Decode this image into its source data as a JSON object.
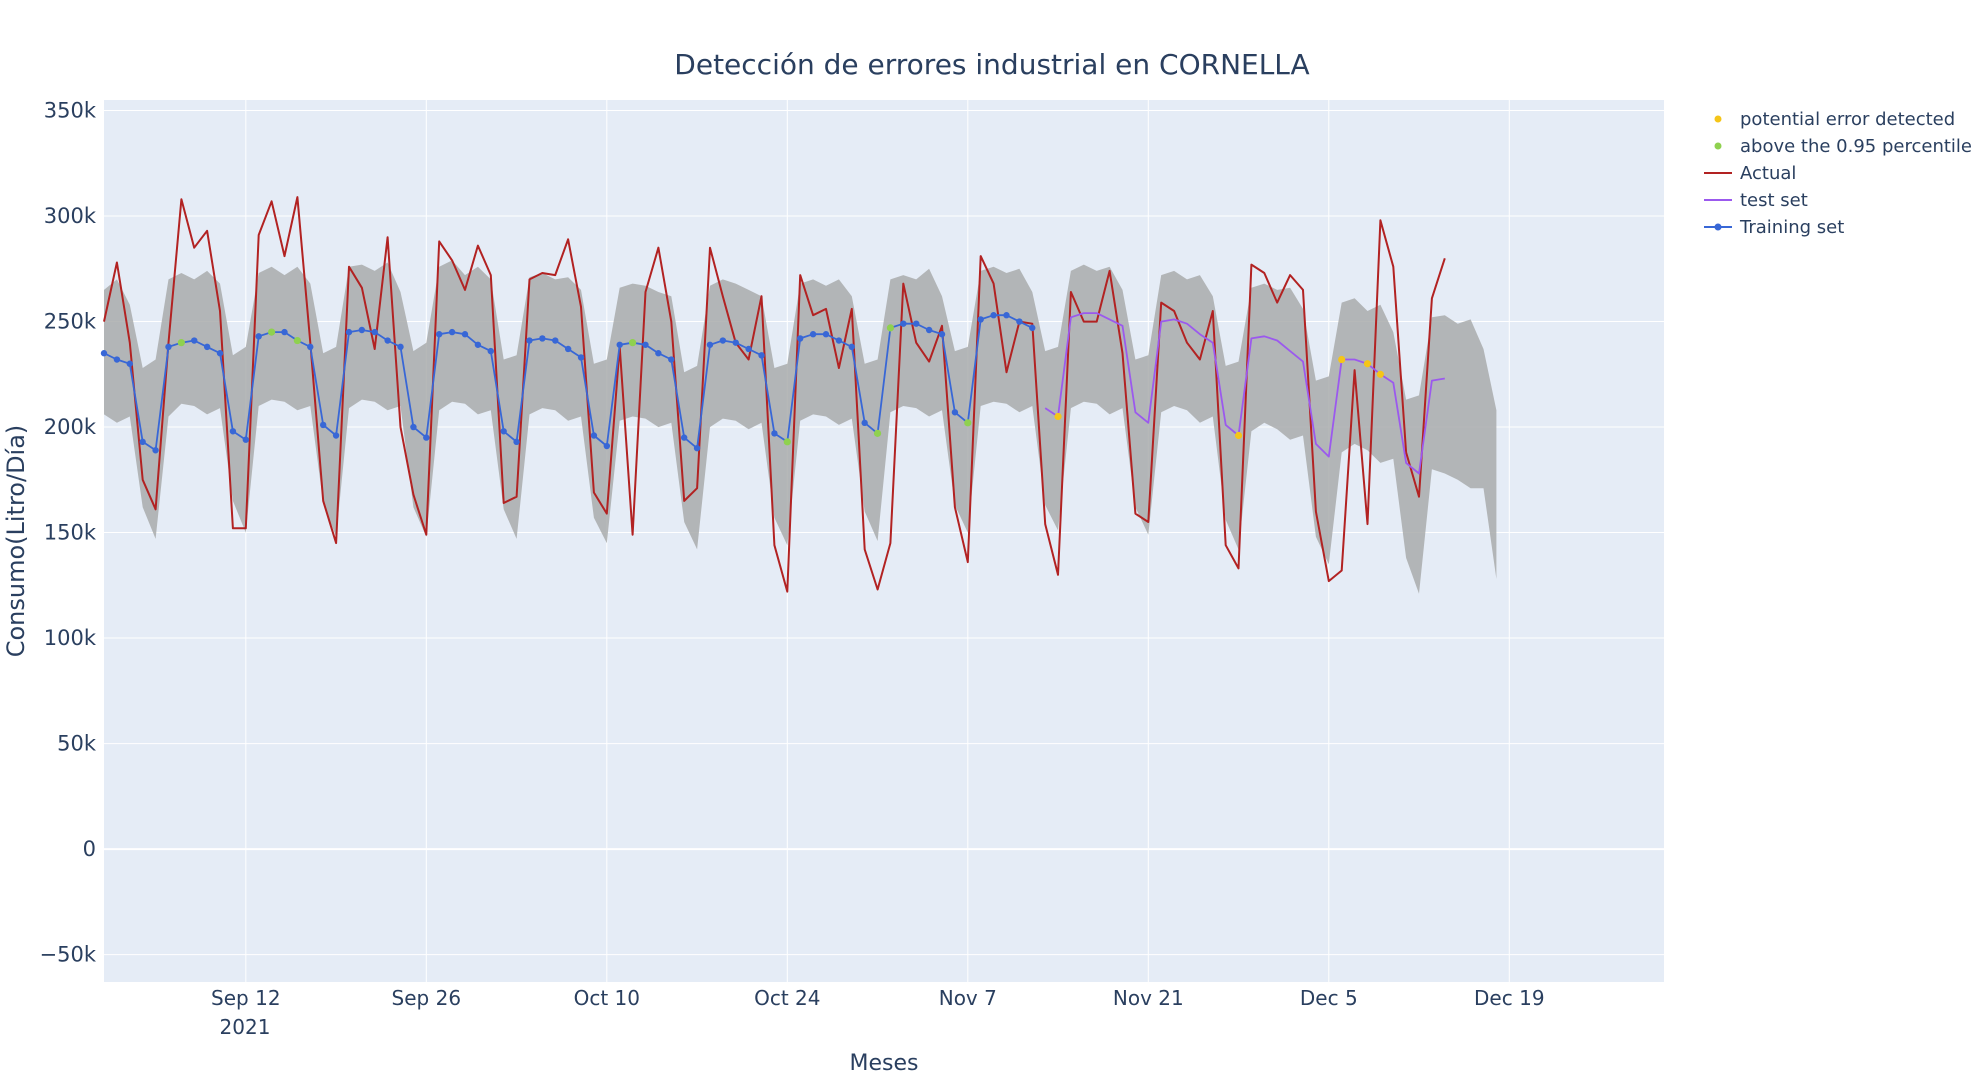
{
  "chart_data": {
    "type": "line",
    "title": "Detección de errores industrial en CORNELLA",
    "xlabel": "Meses",
    "ylabel": "Consumo(Litro/Día)",
    "x_start": "2021-09-01",
    "x_end": "2021-12-31",
    "ylim": [
      -63000,
      355000
    ],
    "y_ticks": [
      -50000,
      0,
      50000,
      100000,
      150000,
      200000,
      250000,
      300000,
      350000
    ],
    "y_tick_labels": [
      "−50k",
      "0",
      "50k",
      "100k",
      "150k",
      "200k",
      "250k",
      "300k",
      "350k"
    ],
    "x_ticks": [
      "2021-09-12",
      "2021-09-26",
      "2021-10-10",
      "2021-10-24",
      "2021-11-07",
      "2021-11-21",
      "2021-12-05",
      "2021-12-19"
    ],
    "x_tick_labels": [
      "Sep 12",
      "Sep 26",
      "Oct 10",
      "Oct 24",
      "Nov 7",
      "Nov 21",
      "Dec 5",
      "Dec 19"
    ],
    "x_tick_year": "2021",
    "grid": true,
    "legend_position": "top-right",
    "colors": {
      "plot_bg": "#e5ecf6",
      "band": "#a9abac",
      "actual": "#b22222",
      "test": "#9b59ee",
      "training": "#3867d6",
      "potential_error": "#f5c518",
      "percentile": "#8fd14f"
    },
    "series": [
      {
        "name": "Actual",
        "start": "2021-09-01",
        "values": [
          250000,
          278000,
          240000,
          175000,
          161000,
          240000,
          308000,
          285000,
          293000,
          255000,
          152000,
          152000,
          291000,
          307000,
          281000,
          309000,
          240000,
          165000,
          145000,
          276000,
          266000,
          237000,
          290000,
          200000,
          168000,
          149000,
          288000,
          279000,
          265000,
          286000,
          272000,
          164000,
          167000,
          270000,
          273000,
          272000,
          289000,
          257000,
          169000,
          159000,
          238000,
          149000,
          264000,
          285000,
          250000,
          165000,
          171000,
          285000,
          262000,
          240000,
          232000,
          262000,
          144000,
          122000,
          272000,
          253000,
          256000,
          228000,
          256000,
          142000,
          123000,
          145000,
          268000,
          240000,
          231000,
          248000,
          162000,
          136000,
          281000,
          268000,
          226000,
          250000,
          249000,
          154000,
          130000,
          264000,
          250000,
          250000,
          274000,
          235000,
          159000,
          155000,
          259000,
          255000,
          240000,
          232000,
          255000,
          144000,
          133000,
          277000,
          273000,
          259000,
          272000,
          265000,
          160000,
          127000,
          132000,
          227000,
          154000,
          298000,
          276000,
          188000,
          167000,
          261000,
          280000
        ]
      },
      {
        "name": "Training set",
        "start": "2021-09-01",
        "values": [
          235000,
          232000,
          230000,
          193000,
          189000,
          238000,
          240000,
          241000,
          238000,
          235000,
          198000,
          194000,
          243000,
          245000,
          245000,
          241000,
          238000,
          201000,
          196000,
          245000,
          246000,
          245000,
          241000,
          238000,
          200000,
          195000,
          244000,
          245000,
          244000,
          239000,
          236000,
          198000,
          193000,
          241000,
          242000,
          241000,
          237000,
          233000,
          196000,
          191000,
          239000,
          240000,
          239000,
          235000,
          232000,
          195000,
          190000,
          239000,
          241000,
          240000,
          237000,
          234000,
          197000,
          193000,
          242000,
          244000,
          244000,
          241000,
          238000,
          202000,
          197000,
          247000,
          249000,
          249000,
          246000,
          244000,
          207000,
          202000,
          251000,
          253000,
          253000,
          250000,
          247000
        ]
      },
      {
        "name": "test set",
        "start": "2021-11-13",
        "values": [
          209000,
          205000,
          252000,
          254000,
          254000,
          251000,
          248000,
          207000,
          202000,
          250000,
          251000,
          249000,
          244000,
          240000,
          201000,
          196000,
          242000,
          243000,
          241000,
          236000,
          231000,
          192000,
          186000,
          232000,
          232000,
          230000,
          225000,
          221000,
          183000,
          178000,
          222000,
          223000
        ]
      }
    ],
    "band": {
      "start": "2021-09-01",
      "upper": [
        265000,
        270000,
        258000,
        228000,
        232000,
        270000,
        273000,
        270000,
        274000,
        268000,
        234000,
        238000,
        273000,
        276000,
        272000,
        276000,
        268000,
        235000,
        238000,
        276000,
        277000,
        274000,
        278000,
        264000,
        236000,
        240000,
        276000,
        279000,
        272000,
        276000,
        270000,
        232000,
        234000,
        271000,
        273000,
        270000,
        271000,
        265000,
        230000,
        232000,
        266000,
        268000,
        267000,
        264000,
        262000,
        226000,
        229000,
        267000,
        270000,
        268000,
        265000,
        262000,
        228000,
        230000,
        268000,
        270000,
        267000,
        270000,
        262000,
        230000,
        232000,
        270000,
        272000,
        270000,
        275000,
        262000,
        236000,
        238000,
        274000,
        276000,
        273000,
        275000,
        264000,
        236000,
        238000,
        274000,
        277000,
        274000,
        276000,
        265000,
        232000,
        234000,
        272000,
        274000,
        270000,
        272000,
        262000,
        229000,
        231000,
        266000,
        268000,
        265000,
        266000,
        256000,
        222000,
        224000,
        259000,
        261000,
        255000,
        258000,
        245000,
        213000,
        215000,
        252000,
        253000,
        249000,
        251000,
        237000,
        208000
      ],
      "lower": [
        206000,
        202000,
        205000,
        162000,
        147000,
        205000,
        211000,
        210000,
        206000,
        209000,
        165000,
        150000,
        210000,
        213000,
        212000,
        208000,
        210000,
        164000,
        148000,
        209000,
        213000,
        212000,
        208000,
        210000,
        162000,
        148000,
        208000,
        212000,
        211000,
        206000,
        208000,
        161000,
        147000,
        206000,
        209000,
        208000,
        203000,
        205000,
        157000,
        145000,
        203000,
        205000,
        204000,
        200000,
        202000,
        155000,
        142000,
        200000,
        204000,
        203000,
        199000,
        202000,
        157000,
        144000,
        203000,
        206000,
        205000,
        201000,
        204000,
        160000,
        146000,
        207000,
        210000,
        209000,
        205000,
        208000,
        163000,
        150000,
        210000,
        212000,
        211000,
        207000,
        210000,
        163000,
        151000,
        209000,
        212000,
        211000,
        206000,
        209000,
        162000,
        149000,
        207000,
        210000,
        208000,
        202000,
        205000,
        156000,
        142000,
        198000,
        202000,
        199000,
        194000,
        196000,
        148000,
        135000,
        188000,
        192000,
        189000,
        183000,
        185000,
        138000,
        121000,
        180000,
        178000,
        175000,
        171000,
        171000,
        128000
      ]
    },
    "markers": [
      {
        "name": "potential error detected",
        "points": [
          {
            "x": "2021-11-14",
            "y": 205000
          },
          {
            "x": "2021-11-28",
            "y": 196000
          },
          {
            "x": "2021-12-06",
            "y": 232000
          },
          {
            "x": "2021-12-08",
            "y": 230000
          },
          {
            "x": "2021-12-09",
            "y": 225000
          }
        ]
      },
      {
        "name": "above the 0.95 percentile",
        "points": [
          {
            "x": "2021-09-07",
            "y": 240000
          },
          {
            "x": "2021-09-14",
            "y": 245000
          },
          {
            "x": "2021-09-16",
            "y": 241000
          },
          {
            "x": "2021-10-12",
            "y": 240000
          },
          {
            "x": "2021-10-24",
            "y": 193000
          },
          {
            "x": "2021-10-31",
            "y": 197000
          },
          {
            "x": "2021-11-01",
            "y": 247000
          },
          {
            "x": "2021-11-07",
            "y": 202000
          }
        ]
      }
    ],
    "legend": [
      {
        "label": "potential error detected",
        "kind": "marker",
        "color_key": "potential_error"
      },
      {
        "label": "above the 0.95 percentile",
        "kind": "marker",
        "color_key": "percentile"
      },
      {
        "label": "Actual",
        "kind": "line",
        "color_key": "actual"
      },
      {
        "label": "test set",
        "kind": "line",
        "color_key": "test"
      },
      {
        "label": "Training set",
        "kind": "line-marker",
        "color_key": "training"
      }
    ]
  }
}
